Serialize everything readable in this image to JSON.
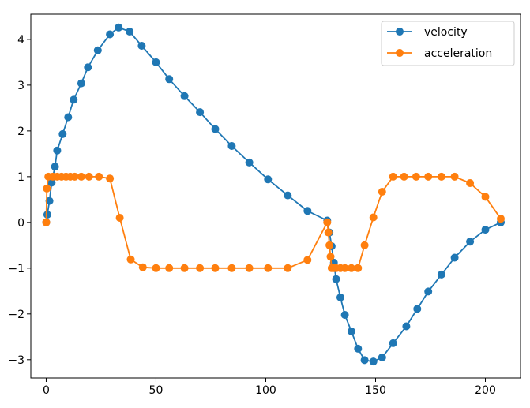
{
  "chart_data": {
    "type": "line",
    "title": "",
    "xlabel": "",
    "ylabel": "",
    "xlim": [
      -7,
      216
    ],
    "ylim": [
      -3.4,
      4.55
    ],
    "xticks": [
      0,
      50,
      100,
      150,
      200
    ],
    "yticks": [
      -3,
      -2,
      -1,
      0,
      1,
      2,
      3,
      4
    ],
    "x_tick_labels": [
      "0",
      "50",
      "100",
      "150",
      "200"
    ],
    "y_tick_labels": [
      "−3",
      "−2",
      "−1",
      "0",
      "1",
      "2",
      "3",
      "4"
    ],
    "grid": false,
    "legend_position": "top-right",
    "series": [
      {
        "name": "velocity",
        "color": "#1f77b4",
        "marker": "circle",
        "x": [
          0,
          0.5,
          1.5,
          2.5,
          4,
          5,
          7.5,
          10,
          12.5,
          16,
          19,
          23.5,
          29,
          33,
          38,
          43.5,
          50,
          56,
          63,
          70,
          77,
          84.5,
          92.5,
          101,
          110,
          119,
          128,
          129,
          130,
          131,
          132,
          134,
          136,
          139,
          142,
          145,
          149,
          153,
          158,
          164,
          169,
          174,
          180,
          186,
          193,
          200,
          207
        ],
        "y": [
          0,
          0.17,
          0.47,
          0.87,
          1.22,
          1.57,
          1.93,
          2.3,
          2.68,
          3.04,
          3.39,
          3.76,
          4.11,
          4.26,
          4.17,
          3.86,
          3.5,
          3.13,
          2.76,
          2.41,
          2.04,
          1.67,
          1.31,
          0.94,
          0.59,
          0.25,
          0.04,
          -0.22,
          -0.52,
          -0.88,
          -1.24,
          -1.64,
          -2.02,
          -2.38,
          -2.76,
          -3.01,
          -3.04,
          -2.95,
          -2.64,
          -2.27,
          -1.89,
          -1.51,
          -1.14,
          -0.77,
          -0.42,
          -0.16,
          0
        ]
      },
      {
        "name": "acceleration",
        "color": "#ff7f0e",
        "marker": "circle",
        "x": [
          0,
          0.3,
          1,
          3,
          5,
          7,
          9,
          11,
          13,
          16,
          19.5,
          24,
          29,
          33.5,
          38.5,
          44,
          50,
          56,
          63,
          70,
          77,
          84.5,
          92.5,
          101,
          110,
          119,
          128,
          128.5,
          129,
          129.5,
          130,
          131,
          132,
          134,
          136,
          139,
          142,
          145,
          149,
          153,
          158,
          163,
          168.5,
          174,
          180,
          186,
          193,
          200,
          207
        ],
        "y": [
          0,
          0.74,
          1,
          1,
          1,
          1,
          1,
          1,
          1,
          1,
          1,
          1,
          0.96,
          0.1,
          -0.81,
          -0.98,
          -1,
          -1,
          -1,
          -1,
          -1,
          -1,
          -1,
          -1,
          -1,
          -0.82,
          0,
          -0.22,
          -0.5,
          -0.75,
          -1,
          -1,
          -1,
          -1,
          -1,
          -1,
          -1,
          -0.5,
          0.11,
          0.67,
          1,
          1,
          1,
          1,
          1,
          1,
          0.86,
          0.56,
          0.08
        ]
      }
    ]
  }
}
